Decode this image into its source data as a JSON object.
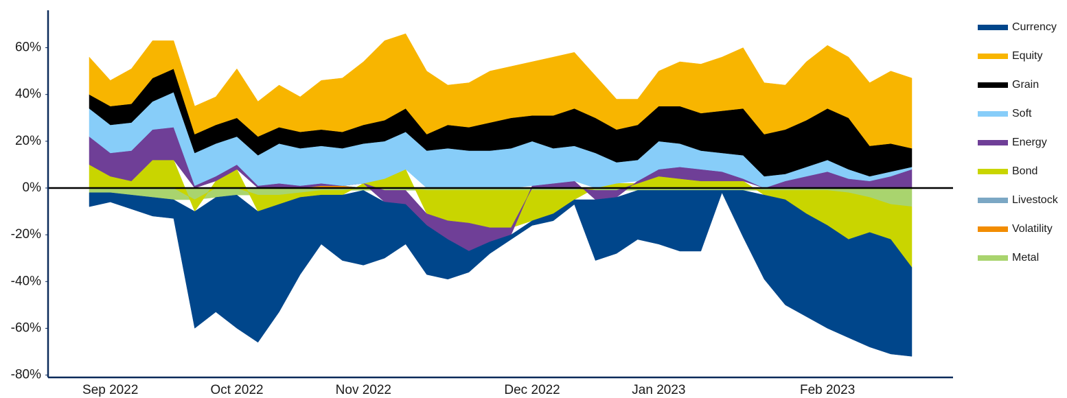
{
  "chart_data": {
    "type": "stacked-area",
    "categories": [
      null,
      "Sep 2022",
      null,
      null,
      null,
      null,
      null,
      "Oct 2022",
      null,
      null,
      null,
      null,
      null,
      "Nov 2022",
      null,
      null,
      null,
      null,
      null,
      null,
      null,
      "Dec 2022",
      null,
      null,
      null,
      null,
      null,
      "Jan 2023",
      null,
      null,
      null,
      null,
      null,
      null,
      null,
      "Feb 2023",
      null,
      null,
      null,
      null
    ],
    "series": [
      {
        "name": "Currency",
        "color": "#00468b",
        "values": [
          -6,
          -4,
          -6,
          -8,
          -8,
          -50,
          -49,
          -57,
          -56,
          -46,
          -33,
          -21,
          -28,
          -32,
          -24,
          -17,
          -21,
          -17,
          -9,
          -5,
          -2,
          -2,
          -3,
          -2,
          -26,
          -24,
          -21,
          -23,
          -26,
          -26,
          -1,
          -20,
          -36,
          -45,
          -44,
          -44,
          -42,
          -49,
          -49,
          -38
        ]
      },
      {
        "name": "Equity",
        "color": "#f8b500",
        "values": [
          16,
          11,
          15,
          16,
          12,
          12,
          12,
          21,
          15,
          18,
          15,
          21,
          23,
          27,
          34,
          32,
          27,
          17,
          19,
          22,
          22,
          23,
          25,
          24,
          18,
          13,
          11,
          15,
          19,
          21,
          23,
          26,
          22,
          19,
          25,
          27,
          26,
          27,
          31,
          30
        ]
      },
      {
        "name": "Grain",
        "color": "#000000",
        "values": [
          6,
          8,
          8,
          10,
          10,
          8,
          8,
          8,
          8,
          7,
          7,
          7,
          7,
          8,
          9,
          10,
          7,
          10,
          10,
          12,
          13,
          11,
          14,
          16,
          15,
          14,
          15,
          15,
          16,
          16,
          18,
          20,
          18,
          19,
          20,
          22,
          22,
          13,
          12,
          8
        ]
      },
      {
        "name": "Soft",
        "color": "#87cdf9",
        "values": [
          12,
          12,
          12,
          12,
          15,
          14,
          14,
          12,
          13,
          17,
          16,
          16,
          16,
          17,
          16,
          16,
          16,
          17,
          16,
          16,
          17,
          19,
          15,
          15,
          15,
          9,
          9,
          12,
          10,
          8,
          8,
          10,
          5,
          3,
          4,
          5,
          4,
          2,
          2,
          1
        ]
      },
      {
        "name": "Energy",
        "color": "#6f3f97",
        "values": [
          12,
          10,
          13,
          13,
          14,
          1,
          2,
          2,
          1,
          2,
          1,
          1,
          0,
          0,
          -5,
          -6,
          -5,
          -8,
          -12,
          -6,
          -3,
          1,
          2,
          3,
          -4,
          -3,
          1,
          3,
          5,
          5,
          4,
          1,
          0,
          3,
          5,
          7,
          4,
          3,
          5,
          8
        ]
      },
      {
        "name": "Bond",
        "color": "#c9d500",
        "values": [
          10,
          5,
          3,
          12,
          12,
          -5,
          3,
          8,
          -7,
          -4,
          -2,
          -2,
          -2,
          2,
          4,
          8,
          -10,
          -13,
          -14,
          -16,
          -16,
          -13,
          -10,
          -4,
          0,
          2,
          2,
          5,
          4,
          3,
          3,
          3,
          -2,
          -4,
          -10,
          -15,
          -20,
          -15,
          -15,
          -26
        ]
      },
      {
        "name": "Livestock",
        "color": "#7ba7c4",
        "values": [
          0,
          0,
          0,
          0,
          0,
          0,
          0,
          0,
          0,
          0,
          0,
          0,
          0,
          0,
          0,
          0,
          0,
          0,
          0,
          0,
          0,
          0,
          0,
          0,
          0,
          0,
          0,
          0,
          0,
          0,
          0,
          0,
          0,
          0,
          0,
          0,
          0,
          0,
          0,
          0
        ]
      },
      {
        "name": "Volatility",
        "color": "#f28c00",
        "values": [
          0,
          0,
          0,
          0,
          0,
          0,
          0,
          0,
          0,
          0,
          0,
          1,
          1,
          0,
          0,
          0,
          0,
          0,
          0,
          0,
          0,
          0,
          0,
          0,
          0,
          0,
          0,
          0,
          0,
          0,
          0,
          0,
          0,
          0,
          0,
          0,
          0,
          0,
          0,
          0
        ]
      },
      {
        "name": "Metal",
        "color": "#a9d46e",
        "values": [
          -2,
          -2,
          -3,
          -4,
          -5,
          -5,
          -4,
          -3,
          -3,
          -3,
          -2,
          -1,
          -1,
          -1,
          -1,
          -1,
          -1,
          -1,
          -1,
          -1,
          -1,
          -1,
          -1,
          -1,
          -1,
          -1,
          -1,
          -1,
          -1,
          -1,
          -1,
          -1,
          -1,
          -1,
          -1,
          -1,
          -2,
          -4,
          -7,
          -8
        ]
      }
    ],
    "ylim": [
      -81,
      76
    ],
    "yticks": [
      {
        "value": -80,
        "label": "-80%"
      },
      {
        "value": -60,
        "label": "-60%"
      },
      {
        "value": -40,
        "label": "-40%"
      },
      {
        "value": -20,
        "label": "-20%"
      },
      {
        "value": 0,
        "label": "0%"
      },
      {
        "value": 20,
        "label": "20%"
      },
      {
        "value": 40,
        "label": "40%"
      },
      {
        "value": 60,
        "label": "60%"
      }
    ],
    "legend": "right"
  }
}
